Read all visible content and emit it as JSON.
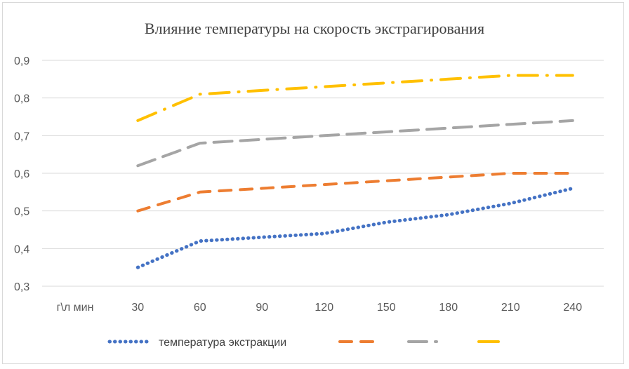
{
  "chart_data": {
    "type": "line",
    "title": "Влияние температуры  на скорость экстрагирования",
    "xlabel": "г\\л мин",
    "ylabel": "",
    "categories": [
      "30",
      "60",
      "90",
      "120",
      "150",
      "180",
      "210",
      "240"
    ],
    "ylim": [
      0.3,
      0.9
    ],
    "yticks": [
      "0,3",
      "0,4",
      "0,5",
      "0,6",
      "0,7",
      "0,8",
      "0,9"
    ],
    "grid": true,
    "legend_position": "bottom",
    "series": [
      {
        "name": "температура экстракции",
        "color": "#4472c4",
        "dash": "dotted",
        "values": [
          0.35,
          0.42,
          0.43,
          0.44,
          0.47,
          0.49,
          0.52,
          0.56
        ]
      },
      {
        "color": "#ed7d31",
        "dash": "dashed",
        "values": [
          0.5,
          0.55,
          0.56,
          0.57,
          0.58,
          0.59,
          0.6,
          0.6
        ]
      },
      {
        "color": "#a5a5a5",
        "dash": "long-dash",
        "values": [
          0.62,
          0.68,
          0.69,
          0.7,
          0.71,
          0.72,
          0.73,
          0.74
        ]
      },
      {
        "color": "#ffc000",
        "dash": "dash-dot",
        "values": [
          0.74,
          0.81,
          0.82,
          0.83,
          0.84,
          0.85,
          0.86,
          0.86
        ]
      }
    ]
  }
}
